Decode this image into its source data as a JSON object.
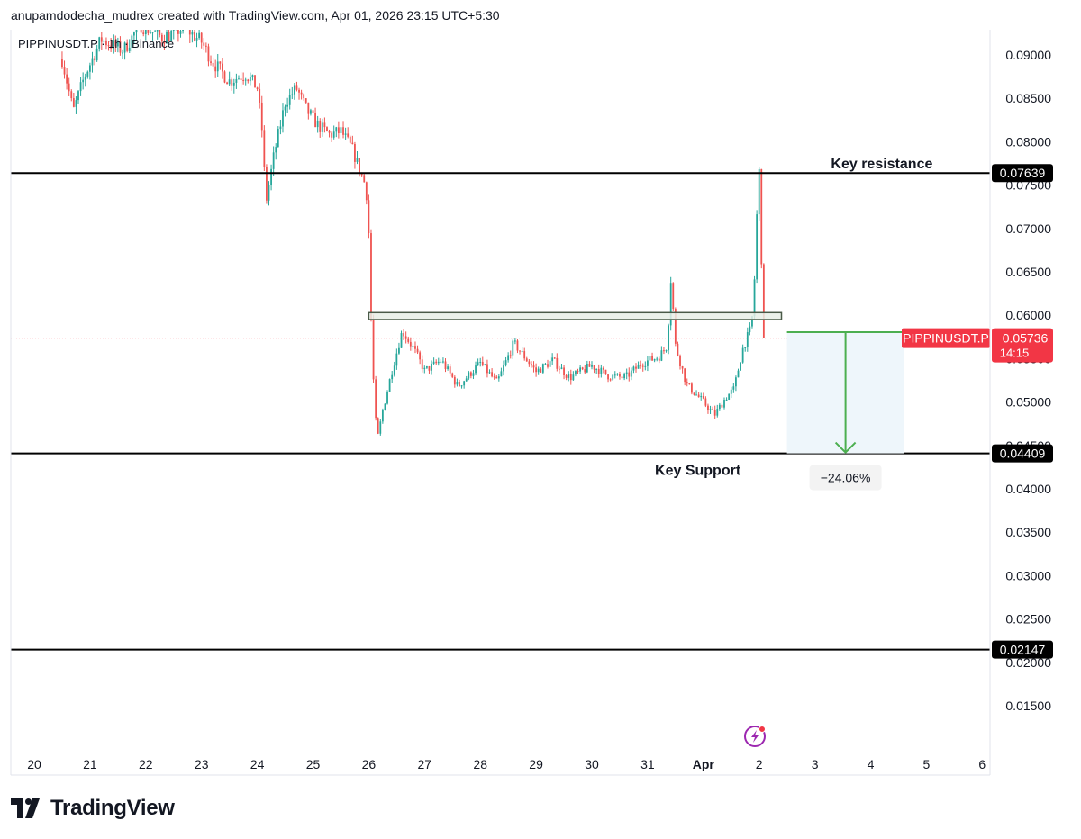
{
  "header": {
    "attribution": "anupamdodecha_mudrex created with TradingView.com, Apr 01, 2026 23:15 UTC+5:30"
  },
  "legend": {
    "symbol_line": "PIPPINUSDT.P · 1h · Binance"
  },
  "colors": {
    "up": "#26a69a",
    "down": "#ef5350",
    "level_line": "#000000",
    "zone_fill": "#e8efe6",
    "zone_border": "#4a5a48",
    "projection": "#4caf50",
    "projection_fill": "#eef6fb",
    "current_price": "#f23645"
  },
  "icons": {
    "replay": "lightning-bolt-icon"
  },
  "branding": {
    "logo_text": "TradingView",
    "logo_icon": "tradingview-logo-icon"
  },
  "chart_data": {
    "type": "candlestick",
    "symbol": "PIPPINUSDT.P",
    "interval": "1h",
    "exchange": "Binance",
    "ylim": [
      0.011,
      0.0928
    ],
    "y_ticks": [
      "0.09000",
      "0.08500",
      "0.08000",
      "0.07500",
      "0.07000",
      "0.06500",
      "0.06000",
      "0.05500",
      "0.05000",
      "0.04500",
      "0.04000",
      "0.03500",
      "0.03000",
      "0.02500",
      "0.02000",
      "0.01500"
    ],
    "y_tick_values": [
      0.09,
      0.085,
      0.08,
      0.075,
      0.07,
      0.065,
      0.06,
      0.055,
      0.05,
      0.045,
      0.04,
      0.035,
      0.03,
      0.025,
      0.02,
      0.015
    ],
    "x_ticks": [
      {
        "label": "20",
        "day": 20
      },
      {
        "label": "21",
        "day": 21
      },
      {
        "label": "22",
        "day": 22
      },
      {
        "label": "23",
        "day": 23
      },
      {
        "label": "24",
        "day": 24
      },
      {
        "label": "25",
        "day": 25
      },
      {
        "label": "26",
        "day": 26
      },
      {
        "label": "27",
        "day": 27
      },
      {
        "label": "28",
        "day": 28
      },
      {
        "label": "29",
        "day": 29
      },
      {
        "label": "30",
        "day": 30
      },
      {
        "label": "31",
        "day": 31
      },
      {
        "label": "Apr",
        "day": 32
      },
      {
        "label": "2",
        "day": 33
      },
      {
        "label": "3",
        "day": 34
      },
      {
        "label": "4",
        "day": 35
      },
      {
        "label": "5",
        "day": 36
      },
      {
        "label": "6",
        "day": 37
      }
    ],
    "price_path": [
      [
        20.5,
        0.0895
      ],
      [
        20.7,
        0.0835
      ],
      [
        20.9,
        0.0875
      ],
      [
        21.2,
        0.0918
      ],
      [
        21.6,
        0.0905
      ],
      [
        21.9,
        0.0935
      ],
      [
        22.3,
        0.092
      ],
      [
        22.7,
        0.0932
      ],
      [
        23.0,
        0.0915
      ],
      [
        23.2,
        0.0892
      ],
      [
        23.5,
        0.087
      ],
      [
        23.8,
        0.0878
      ],
      [
        24.0,
        0.0862
      ],
      [
        24.1,
        0.0805
      ],
      [
        24.15,
        0.0728
      ],
      [
        24.3,
        0.0785
      ],
      [
        24.5,
        0.0845
      ],
      [
        24.7,
        0.0862
      ],
      [
        24.9,
        0.0835
      ],
      [
        25.1,
        0.0818
      ],
      [
        25.3,
        0.0808
      ],
      [
        25.5,
        0.0812
      ],
      [
        25.7,
        0.0792
      ],
      [
        25.85,
        0.0765
      ],
      [
        25.95,
        0.0748
      ],
      [
        26.0,
        0.0695
      ],
      [
        26.05,
        0.0575
      ],
      [
        26.1,
        0.05
      ],
      [
        26.15,
        0.0455
      ],
      [
        26.25,
        0.049
      ],
      [
        26.4,
        0.0532
      ],
      [
        26.6,
        0.0582
      ],
      [
        26.8,
        0.0562
      ],
      [
        27.0,
        0.0536
      ],
      [
        27.3,
        0.0548
      ],
      [
        27.6,
        0.0518
      ],
      [
        28.0,
        0.0545
      ],
      [
        28.3,
        0.0522
      ],
      [
        28.6,
        0.0568
      ],
      [
        29.0,
        0.0535
      ],
      [
        29.3,
        0.0548
      ],
      [
        29.6,
        0.0528
      ],
      [
        30.0,
        0.0542
      ],
      [
        30.3,
        0.053
      ],
      [
        30.6,
        0.0528
      ],
      [
        30.9,
        0.0545
      ],
      [
        31.2,
        0.0552
      ],
      [
        31.35,
        0.0565
      ],
      [
        31.42,
        0.0645
      ],
      [
        31.5,
        0.0565
      ],
      [
        31.7,
        0.052
      ],
      [
        32.0,
        0.05
      ],
      [
        32.2,
        0.0485
      ],
      [
        32.4,
        0.0505
      ],
      [
        32.55,
        0.0515
      ],
      [
        32.7,
        0.056
      ],
      [
        32.85,
        0.0585
      ],
      [
        32.9,
        0.061
      ],
      [
        32.95,
        0.0705
      ],
      [
        33.0,
        0.0765
      ],
      [
        33.05,
        0.0645
      ],
      [
        33.1,
        0.0578
      ],
      [
        33.12,
        0.05736
      ]
    ],
    "levels": [
      {
        "price": 0.07639,
        "label": "0.07639",
        "annotation": "Key resistance"
      },
      {
        "price": 0.04409,
        "label": "0.04409",
        "annotation": "Key Support"
      },
      {
        "price": 0.02147,
        "label": "0.02147",
        "annotation": ""
      }
    ],
    "zone": {
      "day_start": 26.0,
      "day_end": 33.4,
      "price_low": 0.0595,
      "price_high": 0.0603
    },
    "projection": {
      "day_start": 33.5,
      "day_end": 35.6,
      "price_from": 0.05805,
      "price_to": 0.04409,
      "label": "−24.06%"
    },
    "current_price": {
      "value": 0.05736,
      "label": "0.05736",
      "symbol_label": "PIPPINUSDT.P",
      "countdown": "14:15"
    }
  }
}
